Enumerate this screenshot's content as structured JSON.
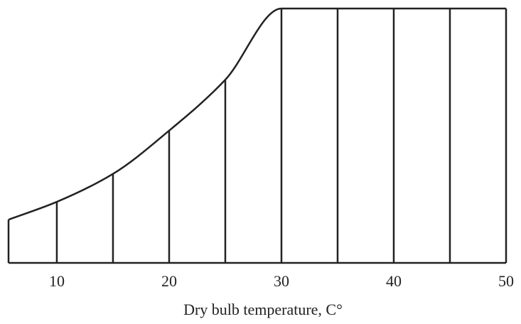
{
  "chart_data": {
    "type": "line",
    "x": [
      5.7,
      10,
      15,
      20,
      25,
      30,
      35,
      40,
      45,
      50
    ],
    "values": [
      17,
      24,
      35,
      52,
      72,
      100,
      100,
      100,
      100,
      100
    ],
    "color": "#222222",
    "xlim": [
      5.7,
      50
    ],
    "ylim": [
      0,
      100
    ],
    "xticks": [
      10,
      20,
      30,
      40,
      50
    ],
    "x_label": "Dry bulb temperature,  C°"
  }
}
